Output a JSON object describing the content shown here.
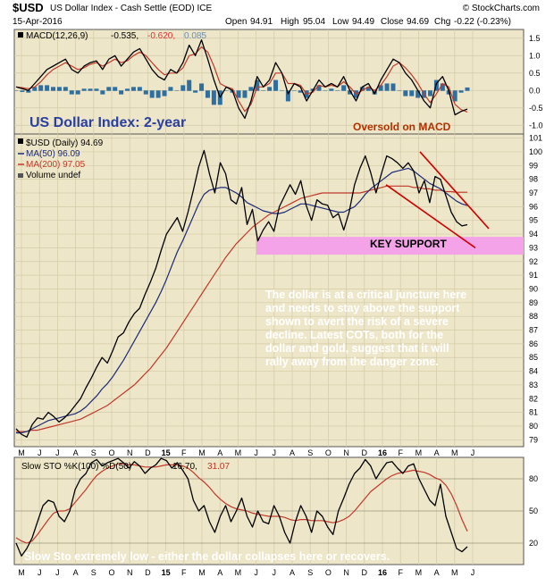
{
  "header": {
    "symbol": "$USD",
    "description": "US Dollar Index - Cash Settle (EOD) ICE",
    "credit": "© StockCharts.com",
    "date": "15-Apr-2016",
    "open_label": "Open",
    "open": "94.91",
    "high_label": "High",
    "high": "95.04",
    "low_label": "Low",
    "low": "94.49",
    "close_label": "Close",
    "close": "94.69",
    "chg_label": "Chg",
    "chg": "-0.22 (-0.23%)"
  },
  "colors": {
    "background": "#ede6c8",
    "price": "#000000",
    "ma50": "#1c2a78",
    "ma200": "#c0392b",
    "histogram": "#2e6fa0",
    "support": "#f4a3e8",
    "trend": "#d00000"
  },
  "macd_panel": {
    "legend_name": "MACD(12,26,9)",
    "legend_macd": "-0.535,",
    "legend_signal": "-0.620,",
    "legend_hist": "0.085",
    "annotation": "Oversold on MACD",
    "ticks": [
      "1.5",
      "1.0",
      "0.5",
      "0.0",
      "-0.5",
      "-1.0"
    ]
  },
  "price_panel": {
    "title_annotation": "US Dollar Index: 2-year",
    "legend_main": "$USD (Daily) 94.69",
    "legend_ma50": "MA(50) 96.09",
    "legend_ma200": "MA(200) 97.05",
    "legend_volume": "Volume undef",
    "support_label": "KEY SUPPORT",
    "commentary": [
      "The dollar is at a critical juncture here",
      "and needs to stay above the support",
      "shown to avert the risk of a severe",
      "decline. Latest COTs, both for the",
      "dollar and gold, suggest that it will",
      "rally away from the danger zone."
    ],
    "ticks": [
      "101",
      "100",
      "99",
      "98",
      "97",
      "96",
      "95",
      "94",
      "93",
      "92",
      "91",
      "90",
      "89",
      "88",
      "87",
      "86",
      "85",
      "84",
      "83",
      "82",
      "81",
      "80",
      "79"
    ]
  },
  "sto_panel": {
    "legend_name": "Slow STO %K(100) %D(50)",
    "legend_k": "16.70,",
    "legend_d": "31.07",
    "annotation": "Slow Sto extremely low - either the dollar collapses here or recovers.",
    "ticks": [
      "80",
      "50",
      "20"
    ]
  },
  "x_axis": {
    "labels": [
      "M",
      "J",
      "J",
      "A",
      "S",
      "O",
      "N",
      "D",
      "15",
      "F",
      "M",
      "A",
      "M",
      "J",
      "J",
      "A",
      "S",
      "O",
      "N",
      "D",
      "16",
      "F",
      "M",
      "A",
      "M",
      "J"
    ]
  },
  "chart_data": [
    {
      "type": "line",
      "panel": "MACD",
      "title": "MACD(12,26,9)",
      "ylim": [
        -1.25,
        1.75
      ],
      "series": [
        {
          "name": "MACD",
          "values": [
            0.1,
            0.05,
            0.0,
            0.2,
            0.4,
            0.6,
            0.7,
            0.8,
            0.9,
            0.6,
            0.5,
            0.7,
            0.8,
            0.85,
            0.6,
            0.9,
            1.0,
            0.7,
            0.9,
            1.1,
            1.2,
            0.9,
            0.6,
            0.4,
            0.3,
            0.6,
            0.5,
            0.8,
            1.3,
            1.0,
            1.45,
            0.9,
            0.3,
            -0.2,
            0.1,
            0.0,
            -0.5,
            -0.8,
            -0.3,
            0.4,
            0.1,
            0.3,
            0.8,
            0.5,
            -0.1,
            0.2,
            0.1,
            -0.3,
            0.0,
            0.3,
            0.1,
            0.2,
            0.1,
            0.4,
            0.0,
            -0.3,
            0.1,
            0.2,
            -0.1,
            0.3,
            0.6,
            0.9,
            0.8,
            0.5,
            0.3,
            0.0,
            -0.3,
            -0.5,
            0.2,
            0.4,
            0.0,
            -0.7,
            -0.6,
            -0.535
          ]
        },
        {
          "name": "Signal",
          "values": [
            0.1,
            0.08,
            0.05,
            0.1,
            0.25,
            0.45,
            0.6,
            0.7,
            0.8,
            0.7,
            0.6,
            0.65,
            0.75,
            0.8,
            0.7,
            0.8,
            0.9,
            0.8,
            0.85,
            1.0,
            1.1,
            1.0,
            0.8,
            0.6,
            0.45,
            0.5,
            0.5,
            0.65,
            1.0,
            1.05,
            1.25,
            1.1,
            0.7,
            0.2,
            0.1,
            0.05,
            -0.3,
            -0.6,
            -0.4,
            0.1,
            0.1,
            0.2,
            0.5,
            0.5,
            0.2,
            0.2,
            0.15,
            -0.1,
            -0.05,
            0.15,
            0.1,
            0.15,
            0.1,
            0.25,
            0.1,
            -0.1,
            0.0,
            0.1,
            0.0,
            0.15,
            0.4,
            0.7,
            0.8,
            0.65,
            0.45,
            0.2,
            -0.1,
            -0.35,
            -0.1,
            0.2,
            0.1,
            -0.4,
            -0.55,
            -0.62
          ]
        },
        {
          "name": "Histogram",
          "values": [
            0.0,
            -0.03,
            -0.05,
            0.1,
            0.15,
            0.15,
            0.1,
            0.1,
            0.1,
            -0.1,
            -0.1,
            0.05,
            0.05,
            0.05,
            -0.1,
            0.1,
            0.1,
            -0.1,
            0.05,
            0.1,
            0.1,
            -0.1,
            -0.2,
            -0.2,
            -0.15,
            0.1,
            0.0,
            0.15,
            0.3,
            -0.05,
            0.2,
            -0.2,
            -0.4,
            -0.4,
            0.0,
            -0.05,
            -0.2,
            -0.2,
            0.1,
            0.3,
            0.0,
            0.1,
            0.3,
            0.0,
            -0.3,
            0.0,
            -0.05,
            -0.2,
            0.05,
            0.15,
            0.0,
            0.05,
            0.0,
            0.15,
            -0.1,
            -0.2,
            0.1,
            0.1,
            -0.1,
            0.15,
            0.2,
            0.2,
            0.0,
            -0.15,
            -0.15,
            -0.2,
            -0.2,
            -0.15,
            0.3,
            0.2,
            -0.1,
            -0.3,
            -0.05,
            0.085
          ]
        }
      ]
    },
    {
      "type": "line",
      "panel": "Price",
      "title": "$USD (Daily) 94.69",
      "ylim": [
        78.5,
        101.3
      ],
      "support_band": [
        92.5,
        93.8
      ],
      "series": [
        {
          "name": "$USD",
          "values": [
            79.8,
            79.4,
            79.2,
            80.1,
            80.6,
            80.5,
            81.0,
            80.7,
            80.3,
            80.6,
            81.0,
            81.5,
            82.0,
            82.8,
            83.5,
            84.3,
            85.0,
            84.6,
            85.5,
            86.5,
            86.8,
            87.6,
            88.2,
            88.6,
            89.6,
            90.5,
            91.5,
            92.8,
            94.0,
            94.6,
            95.2,
            94.2,
            95.6,
            97.2,
            98.9,
            100.1,
            98.4,
            97.0,
            99.2,
            98.4,
            96.5,
            96.2,
            97.4,
            94.7,
            95.8,
            93.5,
            94.3,
            94.9,
            94.2,
            96.0,
            96.8,
            97.6,
            96.9,
            97.9,
            96.1,
            95.0,
            96.5,
            96.2,
            96.1,
            95.2,
            95.5,
            94.3,
            95.6,
            97.6,
            98.8,
            99.7,
            98.5,
            97.0,
            98.4,
            99.7,
            99.5,
            99.2,
            98.8,
            99.2,
            98.6,
            97.0,
            97.9,
            96.3,
            98.2,
            98.0,
            96.8,
            95.6,
            94.9,
            94.6,
            94.69
          ]
        },
        {
          "name": "MA(50)",
          "values": [
            79.5,
            79.5,
            79.6,
            79.8,
            80.0,
            80.2,
            80.4,
            80.5,
            80.6,
            80.7,
            80.8,
            80.9,
            81.1,
            81.4,
            81.8,
            82.2,
            82.7,
            83.1,
            83.6,
            84.2,
            84.8,
            85.5,
            86.2,
            86.9,
            87.6,
            88.3,
            89.0,
            89.8,
            90.7,
            91.7,
            92.7,
            93.5,
            94.4,
            95.3,
            96.2,
            96.9,
            97.2,
            97.3,
            97.4,
            97.4,
            97.2,
            97.0,
            96.7,
            96.3,
            96.1,
            95.9,
            95.7,
            95.6,
            95.5,
            95.5,
            95.6,
            95.8,
            96.0,
            96.2,
            96.2,
            96.1,
            96.0,
            95.9,
            95.8,
            95.7,
            95.6,
            95.6,
            95.8,
            96.0,
            96.4,
            96.9,
            97.3,
            97.6,
            97.9,
            98.2,
            98.5,
            98.6,
            98.7,
            98.8,
            98.6,
            98.3,
            98.0,
            97.7,
            97.5,
            97.3,
            97.0,
            96.7,
            96.4,
            96.2,
            96.09
          ]
        },
        {
          "name": "MA(200)",
          "values": [
            79.6,
            79.6,
            79.6,
            79.7,
            79.7,
            79.8,
            79.9,
            80.0,
            80.1,
            80.2,
            80.3,
            80.4,
            80.5,
            80.7,
            80.9,
            81.1,
            81.3,
            81.5,
            81.8,
            82.1,
            82.4,
            82.7,
            83.0,
            83.4,
            83.8,
            84.2,
            84.7,
            85.2,
            85.7,
            86.3,
            86.9,
            87.5,
            88.1,
            88.7,
            89.3,
            89.9,
            90.5,
            91.1,
            91.7,
            92.3,
            92.8,
            93.3,
            93.7,
            94.1,
            94.5,
            94.8,
            95.1,
            95.4,
            95.6,
            95.8,
            96.0,
            96.2,
            96.4,
            96.6,
            96.7,
            96.8,
            96.9,
            97.0,
            97.0,
            97.0,
            97.0,
            97.0,
            97.0,
            97.0,
            97.0,
            97.1,
            97.2,
            97.3,
            97.4,
            97.5,
            97.5,
            97.5,
            97.5,
            97.5,
            97.4,
            97.4,
            97.3,
            97.3,
            97.2,
            97.2,
            97.1,
            97.1,
            97.05,
            97.05,
            97.05
          ]
        }
      ]
    },
    {
      "type": "line",
      "panel": "Slow Stochastic",
      "title": "Slow STO %K(100) %D(50)",
      "ylim": [
        0,
        100
      ],
      "series": [
        {
          "name": "%K",
          "values": [
            20,
            8,
            15,
            25,
            40,
            55,
            60,
            58,
            45,
            40,
            50,
            70,
            80,
            85,
            95,
            98,
            92,
            95,
            97,
            99,
            95,
            90,
            96,
            92,
            85,
            90,
            93,
            99,
            97,
            90,
            95,
            88,
            80,
            60,
            50,
            55,
            40,
            30,
            45,
            55,
            40,
            50,
            62,
            45,
            35,
            50,
            40,
            38,
            55,
            45,
            30,
            20,
            40,
            55,
            45,
            30,
            50,
            45,
            35,
            28,
            50,
            62,
            75,
            85,
            90,
            98,
            92,
            80,
            88,
            95,
            96,
            90,
            85,
            92,
            94,
            80,
            70,
            60,
            55,
            75,
            45,
            30,
            15,
            12,
            16.7
          ]
        },
        {
          "name": "%D",
          "values": [
            25,
            22,
            20,
            22,
            28,
            35,
            42,
            48,
            50,
            50,
            52,
            58,
            64,
            70,
            77,
            83,
            87,
            90,
            92,
            94,
            94,
            93,
            93,
            92,
            91,
            91,
            91,
            92,
            93,
            93,
            93,
            92,
            90,
            86,
            81,
            77,
            72,
            66,
            61,
            57,
            54,
            52,
            51,
            50,
            48,
            47,
            46,
            45,
            45,
            45,
            44,
            42,
            41,
            42,
            42,
            41,
            41,
            41,
            40,
            39,
            40,
            42,
            45,
            50,
            56,
            62,
            68,
            72,
            76,
            80,
            83,
            85,
            86,
            87,
            88,
            87,
            86,
            84,
            81,
            79,
            74,
            66,
            55,
            42,
            31.07
          ]
        }
      ]
    }
  ]
}
